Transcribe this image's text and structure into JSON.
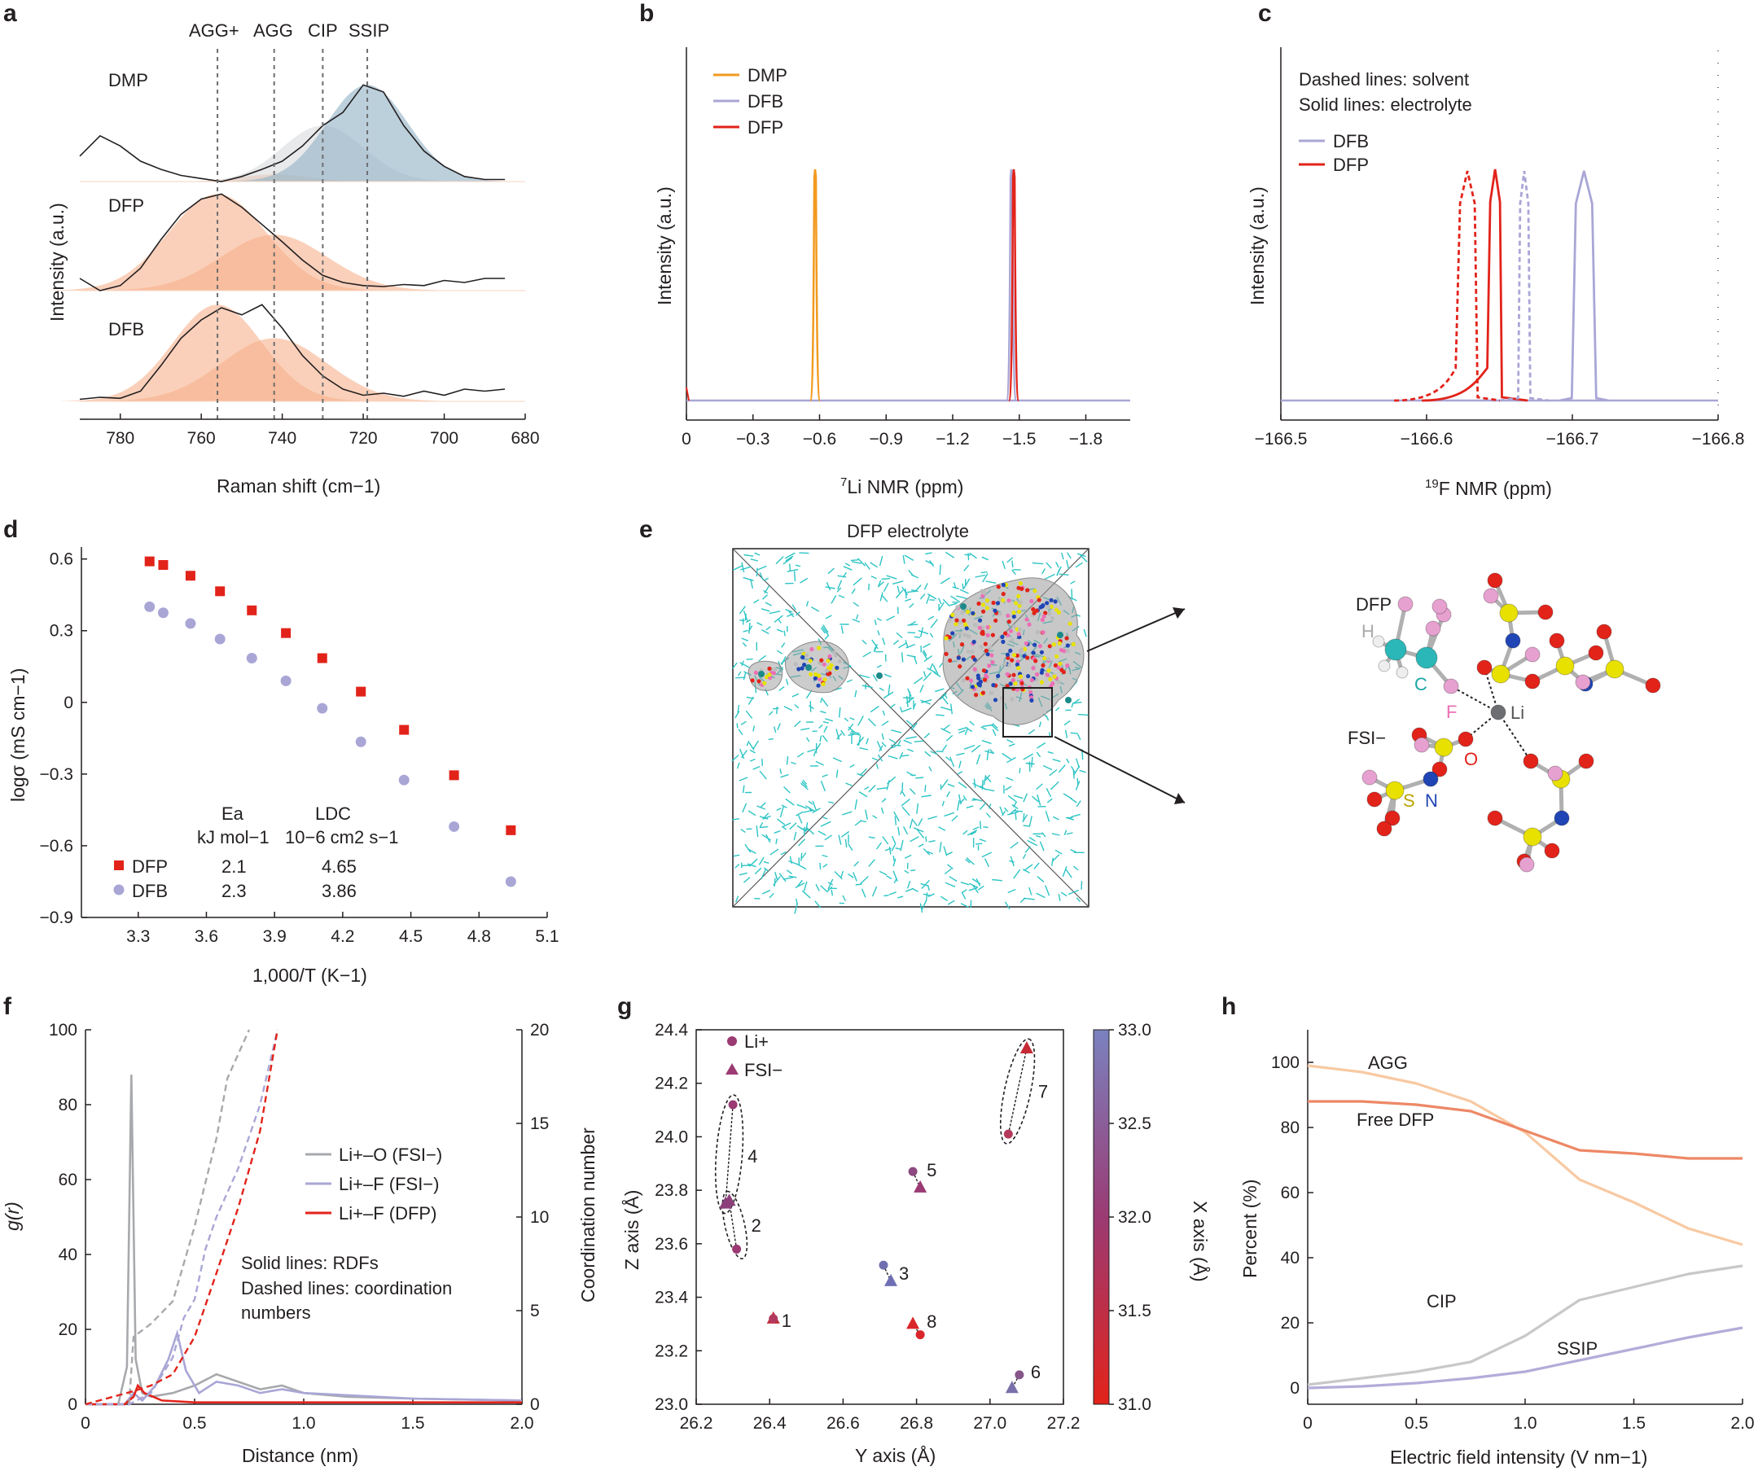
{
  "panels": {
    "a": {
      "label": "a",
      "xlabel": "Raman shift (cm−1)",
      "ylabel": "Intensity (a.u.)",
      "xticks": [
        "780",
        "760",
        "740",
        "720",
        "700",
        "680"
      ],
      "peaks": [
        "AGG+",
        "AGG",
        "CIP",
        "SSIP"
      ],
      "traces": [
        "DMP",
        "DFP",
        "DFB"
      ]
    },
    "b": {
      "label": "b",
      "xlabel_pre": "7",
      "xlabel": "Li NMR (ppm)",
      "ylabel": "Intensity (a.u.)",
      "xticks": [
        "0",
        "−0.3",
        "−0.6",
        "−0.9",
        "−1.2",
        "−1.5",
        "−1.8"
      ],
      "legend": [
        "DMP",
        "DFB",
        "DFP"
      ]
    },
    "c": {
      "label": "c",
      "xlabel_pre": "19",
      "xlabel": "F NMR (ppm)",
      "ylabel": "Intensity (a.u.)",
      "xticks": [
        "−166.5",
        "−166.6",
        "−166.7",
        "−166.8"
      ],
      "note1": "Dashed lines: solvent",
      "note2": "Solid lines: electrolyte",
      "legend": [
        "DFB",
        "DFP"
      ]
    },
    "d": {
      "label": "d",
      "xlabel": "1,000/T (K−1)",
      "ylabel": "logσ (mS cm−1)",
      "xticks": [
        "3.3",
        "3.6",
        "3.9",
        "4.2",
        "4.5",
        "4.8",
        "5.1"
      ],
      "yticks": [
        "0.6",
        "0.3",
        "0",
        "−0.3",
        "−0.6",
        "−0.9"
      ],
      "table_h1": "Ea",
      "table_h2": "LDC",
      "table_u1": "kJ mol−1",
      "table_u2": "10−6 cm2 s−1",
      "rows": [
        {
          "name": "DFP",
          "ea": "2.1",
          "ldc": "4.65"
        },
        {
          "name": "DFB",
          "ea": "2.3",
          "ldc": "3.86"
        }
      ]
    },
    "e": {
      "label": "e",
      "title": "DFP electrolyte",
      "atoms": {
        "dfp": "DFP",
        "h": "H",
        "c": "C",
        "f": "F",
        "li": "Li",
        "fsi": "FSI−",
        "o": "O",
        "s": "S",
        "n": "N"
      }
    },
    "f": {
      "label": "f",
      "xlabel": "Distance (nm)",
      "ylabel": "g(r)",
      "y2label": "Coordination number",
      "xticks": [
        "0",
        "0.5",
        "1.0",
        "1.5",
        "2.0"
      ],
      "yticks": [
        "0",
        "20",
        "40",
        "60",
        "80",
        "100"
      ],
      "y2ticks": [
        "0",
        "5",
        "10",
        "15",
        "20"
      ],
      "legend": [
        "Li+–O (FSI−)",
        "Li+–F (FSI−)",
        "Li+–F (DFP)"
      ],
      "note1": "Solid lines: RDFs",
      "note2": "Dashed lines: coordination",
      "note3": "numbers"
    },
    "g": {
      "label": "g",
      "xlabel": "Y axis (Å)",
      "ylabel": "Z axis (Å)",
      "cbarlabel": "X axis (Å)",
      "xticks": [
        "26.2",
        "26.4",
        "26.6",
        "26.8",
        "27.0",
        "27.2"
      ],
      "yticks": [
        "23.0",
        "23.2",
        "23.4",
        "23.6",
        "23.8",
        "24.0",
        "24.2",
        "24.4"
      ],
      "cbticks": [
        "31.0",
        "31.5",
        "32.0",
        "32.5",
        "33.0"
      ],
      "legend": [
        "Li+",
        "FSI−"
      ]
    },
    "h": {
      "label": "h",
      "xlabel": "Electric field intensity (V nm−1)",
      "ylabel": "Percent (%)",
      "xticks": [
        "0",
        "0.5",
        "1.0",
        "1.5",
        "2.0"
      ],
      "yticks": [
        "0",
        "20",
        "40",
        "60",
        "80",
        "100"
      ],
      "series_labels": [
        "AGG",
        "Free DFP",
        "CIP",
        "SSIP"
      ]
    }
  },
  "colors": {
    "orange": "#f29a1f",
    "lavender": "#a9a6d6",
    "red": "#e2231a",
    "grey": "#a7a9ac",
    "teal": "#2ec4c4",
    "blue_fill": "#8fb0c4",
    "orange_fill": "#f6b08c"
  },
  "chart_data": [
    {
      "panel": "a",
      "type": "line",
      "title": "",
      "xlabel": "Raman shift (cm−1)",
      "ylabel": "Intensity (a.u.)",
      "xlim": [
        790,
        680
      ],
      "x_reversed": true,
      "peak_positions": [
        {
          "name": "AGG+",
          "x": 756
        },
        {
          "name": "AGG",
          "x": 742
        },
        {
          "name": "CIP",
          "x": 730
        },
        {
          "name": "SSIP",
          "x": 719
        }
      ],
      "series": [
        {
          "name": "DMP",
          "x": [
            790,
            785,
            780,
            775,
            770,
            765,
            760,
            755,
            750,
            745,
            740,
            735,
            730,
            725,
            720,
            715,
            710,
            705,
            700,
            695,
            690,
            685
          ],
          "y": [
            0.25,
            0.45,
            0.35,
            0.2,
            0.12,
            0.06,
            0.03,
            0.0,
            0.05,
            0.12,
            0.2,
            0.35,
            0.55,
            0.68,
            0.95,
            0.88,
            0.55,
            0.3,
            0.15,
            0.05,
            0.02,
            0.02
          ]
        },
        {
          "name": "DFP",
          "x": [
            790,
            785,
            780,
            775,
            770,
            765,
            760,
            755,
            750,
            745,
            740,
            735,
            730,
            725,
            720,
            715,
            710,
            705,
            700,
            695,
            690,
            685
          ],
          "y": [
            0.12,
            0.0,
            0.05,
            0.22,
            0.5,
            0.75,
            0.9,
            0.95,
            0.82,
            0.65,
            0.48,
            0.3,
            0.15,
            0.08,
            0.05,
            0.04,
            0.06,
            0.05,
            0.1,
            0.08,
            0.12,
            0.12
          ]
        },
        {
          "name": "DFB",
          "x": [
            790,
            785,
            780,
            775,
            770,
            765,
            760,
            755,
            750,
            745,
            740,
            735,
            730,
            725,
            720,
            715,
            710,
            705,
            700,
            695,
            690,
            685
          ],
          "y": [
            0.02,
            0.04,
            0.03,
            0.1,
            0.35,
            0.62,
            0.8,
            0.92,
            0.85,
            0.95,
            0.72,
            0.45,
            0.25,
            0.12,
            0.06,
            0.08,
            0.05,
            0.1,
            0.06,
            0.12,
            0.1,
            0.12
          ]
        }
      ]
    },
    {
      "panel": "b",
      "type": "line",
      "title": "",
      "xlabel": "7Li NMR (ppm)",
      "ylabel": "Intensity (a.u.)",
      "xlim": [
        0,
        -2.0
      ],
      "x_reversed": true,
      "series": [
        {
          "name": "DMP",
          "peak_x": -0.58,
          "height": 1.0
        },
        {
          "name": "DFB",
          "peak_x": -1.47,
          "height": 1.0
        },
        {
          "name": "DFP",
          "peak_x": -1.47,
          "height": 1.0
        }
      ]
    },
    {
      "panel": "c",
      "type": "line",
      "title": "",
      "xlabel": "19F NMR (ppm)",
      "ylabel": "Intensity (a.u.)",
      "xlim": [
        -166.5,
        -166.8
      ],
      "x_reversed": true,
      "series": [
        {
          "name": "DFP solvent",
          "peak_x": -166.628,
          "dashed": true
        },
        {
          "name": "DFP electrolyte",
          "peak_x": -166.647,
          "dashed": false
        },
        {
          "name": "DFB solvent",
          "peak_x": -166.667,
          "dashed": true
        },
        {
          "name": "DFB electrolyte",
          "peak_x": -166.708,
          "dashed": false
        }
      ]
    },
    {
      "panel": "d",
      "type": "scatter",
      "title": "",
      "xlabel": "1,000/T (K−1)",
      "ylabel": "logσ (mS cm−1)",
      "xlim": [
        3.05,
        5.1
      ],
      "ylim": [
        -0.9,
        0.65
      ],
      "series": [
        {
          "name": "DFP",
          "x": [
            3.35,
            3.41,
            3.53,
            3.66,
            3.8,
            3.95,
            4.11,
            4.28,
            4.47,
            4.69,
            4.94
          ],
          "y": [
            0.59,
            0.575,
            0.53,
            0.465,
            0.385,
            0.29,
            0.185,
            0.045,
            -0.115,
            -0.305,
            -0.535
          ]
        },
        {
          "name": "DFB",
          "x": [
            3.35,
            3.41,
            3.53,
            3.66,
            3.8,
            3.95,
            4.11,
            4.28,
            4.47,
            4.69,
            4.94
          ],
          "y": [
            0.4,
            0.375,
            0.33,
            0.265,
            0.185,
            0.09,
            -0.025,
            -0.165,
            -0.325,
            -0.52,
            -0.75
          ]
        }
      ]
    },
    {
      "panel": "f",
      "type": "line",
      "title": "",
      "xlabel": "Distance (nm)",
      "ylabel": "g(r)",
      "y2label": "Coordination number",
      "xlim": [
        0,
        2.0
      ],
      "ylim": [
        0,
        100
      ],
      "y2lim": [
        0,
        20
      ],
      "series": [
        {
          "name": "Li+–O (FSI−) RDF",
          "axis": "y",
          "x": [
            0,
            0.15,
            0.19,
            0.21,
            0.23,
            0.26,
            0.3,
            0.4,
            0.5,
            0.6,
            0.7,
            0.8,
            0.9,
            1.0,
            1.2,
            1.5,
            2.0
          ],
          "y": [
            0,
            0,
            10,
            88,
            12,
            3,
            2,
            3,
            5,
            8,
            6,
            4,
            5,
            3,
            2,
            1.5,
            1
          ]
        },
        {
          "name": "Li+–F (FSI−) RDF",
          "axis": "y",
          "x": [
            0,
            0.18,
            0.22,
            0.26,
            0.32,
            0.38,
            0.42,
            0.46,
            0.52,
            0.6,
            0.7,
            0.8,
            0.9,
            1.0,
            1.5,
            2.0
          ],
          "y": [
            0,
            0,
            3,
            1,
            5,
            12,
            19,
            9,
            3,
            6,
            5,
            3,
            4,
            3,
            1.5,
            1
          ]
        },
        {
          "name": "Li+–F (DFP) RDF",
          "axis": "y",
          "x": [
            0,
            0.18,
            0.22,
            0.24,
            0.27,
            0.35,
            0.5,
            1.0,
            2.0
          ],
          "y": [
            0,
            0,
            2,
            5,
            3,
            1,
            0.5,
            0.5,
            0.5
          ]
        },
        {
          "name": "Li+–O (FSI−) CN",
          "axis": "y2",
          "x": [
            0,
            0.2,
            0.22,
            0.3,
            0.4,
            0.5,
            0.6,
            0.65,
            0.75
          ],
          "y": [
            0,
            0,
            3.6,
            4.3,
            5.5,
            9.5,
            14.2,
            17.4,
            20
          ]
        },
        {
          "name": "Li+–F (FSI−) CN",
          "axis": "y2",
          "x": [
            0,
            0.2,
            0.3,
            0.4,
            0.45,
            0.5,
            0.55,
            0.6,
            0.7,
            0.8,
            0.88
          ],
          "y": [
            0,
            0,
            0.6,
            2.5,
            4.6,
            5.6,
            8.3,
            10,
            12.6,
            16,
            20
          ]
        },
        {
          "name": "Li+–F (DFP) CN",
          "axis": "y2",
          "x": [
            0,
            0.22,
            0.3,
            0.4,
            0.5,
            0.6,
            0.7,
            0.8,
            0.88
          ],
          "y": [
            0,
            0.7,
            1,
            1.6,
            3.6,
            7,
            10.5,
            14.6,
            20
          ]
        }
      ]
    },
    {
      "panel": "g",
      "type": "scatter",
      "title": "",
      "xlabel": "Y axis (Å)",
      "ylabel": "Z axis (Å)",
      "xlim": [
        26.2,
        27.2
      ],
      "ylim": [
        23.0,
        24.4
      ],
      "colorbar": {
        "label": "X axis (Å)",
        "range": [
          31.0,
          33.0
        ]
      },
      "pairs": [
        {
          "id": "1",
          "li": [
            26.41,
            23.32
          ],
          "fsi": [
            26.41,
            23.32
          ]
        },
        {
          "id": "2",
          "li": [
            26.31,
            23.58
          ],
          "fsi": [
            26.29,
            23.76
          ]
        },
        {
          "id": "3",
          "li": [
            26.71,
            23.52
          ],
          "fsi": [
            26.73,
            23.46
          ]
        },
        {
          "id": "4",
          "li": [
            26.3,
            24.12
          ],
          "fsi": [
            26.28,
            23.75
          ]
        },
        {
          "id": "5",
          "li": [
            26.79,
            23.87
          ],
          "fsi": [
            26.81,
            23.81
          ]
        },
        {
          "id": "6",
          "li": [
            27.08,
            23.11
          ],
          "fsi": [
            27.06,
            23.06
          ]
        },
        {
          "id": "7",
          "li": [
            27.05,
            24.01
          ],
          "fsi": [
            27.1,
            24.33
          ]
        },
        {
          "id": "8",
          "li": [
            26.81,
            23.26
          ],
          "fsi": [
            26.79,
            23.3
          ]
        }
      ]
    },
    {
      "panel": "h",
      "type": "line",
      "title": "",
      "xlabel": "Electric field intensity (V nm−1)",
      "ylabel": "Percent (%)",
      "xlim": [
        0,
        2.0
      ],
      "ylim": [
        -5,
        110
      ],
      "series": [
        {
          "name": "AGG",
          "x": [
            0,
            0.25,
            0.5,
            0.75,
            1.0,
            1.25,
            1.5,
            1.75,
            2.0
          ],
          "y": [
            99,
            97,
            93.5,
            88,
            78.5,
            64,
            57,
            49,
            44
          ]
        },
        {
          "name": "Free DFP",
          "x": [
            0,
            0.25,
            0.5,
            0.75,
            1.0,
            1.25,
            1.5,
            1.75,
            2.0
          ],
          "y": [
            88,
            88,
            87,
            85,
            79,
            73,
            72,
            70.5,
            70.5
          ]
        },
        {
          "name": "CIP",
          "x": [
            0,
            0.25,
            0.5,
            0.75,
            1.0,
            1.25,
            1.5,
            1.75,
            2.0
          ],
          "y": [
            1,
            3,
            5,
            8,
            16,
            27,
            31,
            35,
            37.5
          ]
        },
        {
          "name": "SSIP",
          "x": [
            0,
            0.25,
            0.5,
            0.75,
            1.0,
            1.25,
            1.5,
            1.75,
            2.0
          ],
          "y": [
            0,
            0.5,
            1.5,
            3,
            5,
            8.5,
            12,
            15.5,
            18.5
          ]
        }
      ]
    }
  ]
}
